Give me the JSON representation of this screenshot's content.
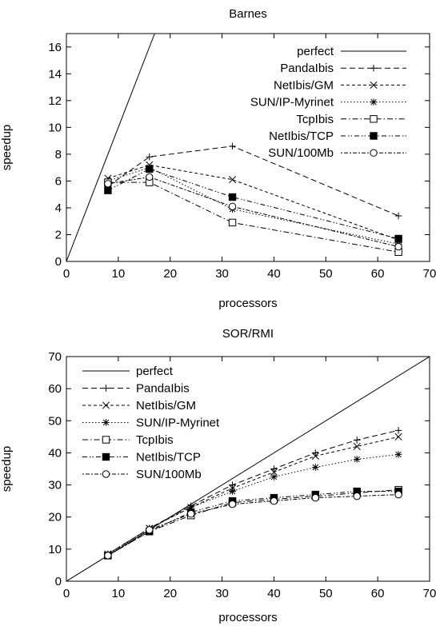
{
  "chart_data": [
    {
      "type": "line",
      "title": "Barnes",
      "xlabel": "processors",
      "ylabel": "speedup",
      "xlim": [
        0,
        70
      ],
      "ylim": [
        0,
        17
      ],
      "xticks": [
        0,
        10,
        20,
        30,
        40,
        50,
        60,
        70
      ],
      "yticks": [
        0,
        2,
        4,
        6,
        8,
        10,
        12,
        14,
        16
      ],
      "legend_position": "top-right",
      "grid": false,
      "series": [
        {
          "name": "perfect",
          "style": "solid",
          "marker": "none",
          "x": [
            0,
            17
          ],
          "y": [
            0,
            17
          ]
        },
        {
          "name": "PandaIbis",
          "style": "dash",
          "marker": "plus",
          "x": [
            8,
            16,
            32,
            64
          ],
          "y": [
            5.6,
            7.8,
            8.6,
            3.4
          ]
        },
        {
          "name": "NetIbis/GM",
          "style": "shortdash",
          "marker": "cross",
          "x": [
            8,
            16,
            32,
            64
          ],
          "y": [
            6.2,
            7.2,
            6.1,
            1.6
          ]
        },
        {
          "name": "SUN/IP-Myrinet",
          "style": "dot",
          "marker": "star",
          "x": [
            8,
            16,
            32,
            64
          ],
          "y": [
            6.0,
            7.0,
            3.9,
            1.3
          ]
        },
        {
          "name": "TcpIbis",
          "style": "dashdot",
          "marker": "open-square",
          "x": [
            8,
            16,
            32,
            64
          ],
          "y": [
            5.9,
            5.9,
            2.9,
            0.7
          ]
        },
        {
          "name": "NetIbis/TCP",
          "style": "dashdotdot",
          "marker": "filled-square",
          "x": [
            8,
            16,
            32,
            64
          ],
          "y": [
            5.3,
            6.9,
            4.8,
            1.7
          ]
        },
        {
          "name": "SUN/100Mb",
          "style": "dotdash",
          "marker": "open-circle",
          "x": [
            8,
            16,
            32,
            64
          ],
          "y": [
            5.8,
            6.3,
            4.1,
            1.1
          ]
        }
      ]
    },
    {
      "type": "line",
      "title": "SOR/RMI",
      "xlabel": "processors",
      "ylabel": "speedup",
      "xlim": [
        0,
        70
      ],
      "ylim": [
        0,
        70
      ],
      "xticks": [
        0,
        10,
        20,
        30,
        40,
        50,
        60,
        70
      ],
      "yticks": [
        0,
        10,
        20,
        30,
        40,
        50,
        60,
        70
      ],
      "legend_position": "top-left",
      "grid": false,
      "series": [
        {
          "name": "perfect",
          "style": "solid",
          "marker": "none",
          "x": [
            0,
            70
          ],
          "y": [
            0,
            70
          ]
        },
        {
          "name": "PandaIbis",
          "style": "dash",
          "marker": "plus",
          "x": [
            8,
            16,
            24,
            32,
            40,
            48,
            56,
            64
          ],
          "y": [
            8.5,
            16.5,
            23.5,
            30.0,
            35.0,
            40.0,
            44.0,
            47.0
          ]
        },
        {
          "name": "NetIbis/GM",
          "style": "shortdash",
          "marker": "cross",
          "x": [
            8,
            16,
            24,
            32,
            40,
            48,
            56,
            64
          ],
          "y": [
            8.5,
            16.5,
            23.0,
            29.0,
            34.0,
            39.0,
            42.0,
            45.0
          ]
        },
        {
          "name": "SUN/IP-Myrinet",
          "style": "dot",
          "marker": "star",
          "x": [
            8,
            16,
            24,
            32,
            40,
            48,
            56,
            64
          ],
          "y": [
            8.3,
            16.5,
            23.0,
            28.0,
            32.5,
            35.5,
            38.0,
            39.5
          ]
        },
        {
          "name": "TcpIbis",
          "style": "dashdot",
          "marker": "open-square",
          "x": [
            8,
            16,
            24,
            32,
            40,
            48,
            56,
            64
          ],
          "y": [
            8.0,
            15.5,
            20.5,
            24.5,
            25.5,
            26.5,
            27.5,
            28.5
          ]
        },
        {
          "name": "NetIbis/TCP",
          "style": "dashdotdot",
          "marker": "filled-square",
          "x": [
            8,
            16,
            24,
            32,
            40,
            48,
            56,
            64
          ],
          "y": [
            8.0,
            15.5,
            21.5,
            25.0,
            26.0,
            27.0,
            28.0,
            28.0
          ]
        },
        {
          "name": "SUN/100Mb",
          "style": "dotdash",
          "marker": "open-circle",
          "x": [
            8,
            16,
            24,
            32,
            40,
            48,
            56,
            64
          ],
          "y": [
            8.0,
            16.0,
            21.0,
            24.0,
            25.0,
            26.0,
            26.5,
            27.0
          ]
        }
      ]
    }
  ]
}
